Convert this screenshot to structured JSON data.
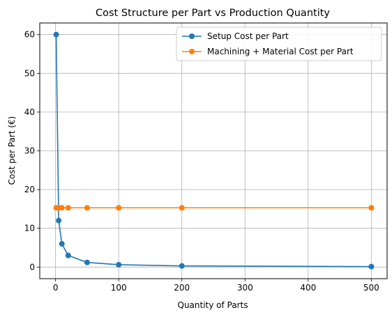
{
  "chart_data": {
    "type": "line",
    "title": "Cost Structure per Part vs Production Quantity",
    "xlabel": "Quantity of Parts",
    "ylabel": "Cost per Part (€)",
    "xlim": [
      -25,
      525
    ],
    "ylim": [
      -3,
      63
    ],
    "xticks": [
      0,
      100,
      200,
      300,
      400,
      500
    ],
    "yticks": [
      0,
      10,
      20,
      30,
      40,
      50,
      60
    ],
    "grid": true,
    "legend_position": "top-right",
    "x": [
      1,
      5,
      10,
      20,
      50,
      100,
      200,
      500
    ],
    "series": [
      {
        "name": "Setup Cost per Part",
        "color": "#1f77b4",
        "values": [
          60,
          12,
          6,
          3,
          1.2,
          0.6,
          0.3,
          0.12
        ]
      },
      {
        "name": "Machining + Material Cost per Part",
        "color": "#ff7f0e",
        "values": [
          15.3,
          15.3,
          15.3,
          15.3,
          15.3,
          15.3,
          15.3,
          15.3
        ]
      }
    ]
  }
}
